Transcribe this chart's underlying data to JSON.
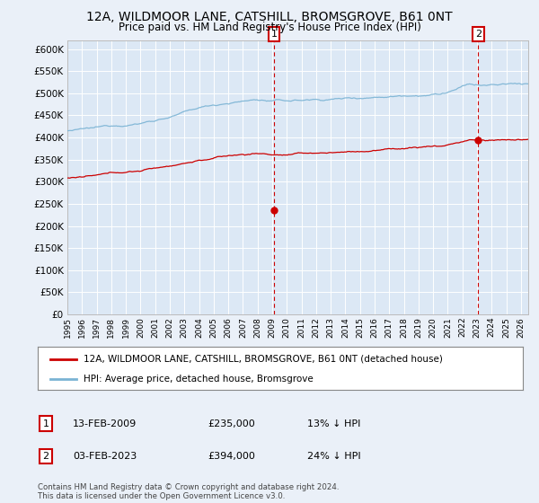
{
  "title": "12A, WILDMOOR LANE, CATSHILL, BROMSGROVE, B61 0NT",
  "subtitle": "Price paid vs. HM Land Registry's House Price Index (HPI)",
  "ylim": [
    0,
    620000
  ],
  "yticks": [
    0,
    50000,
    100000,
    150000,
    200000,
    250000,
    300000,
    350000,
    400000,
    450000,
    500000,
    550000,
    600000
  ],
  "ytick_labels": [
    "£0",
    "£50K",
    "£100K",
    "£150K",
    "£200K",
    "£250K",
    "£300K",
    "£350K",
    "£400K",
    "£450K",
    "£500K",
    "£550K",
    "£600K"
  ],
  "xlim_start": 1995.0,
  "xlim_end": 2026.5,
  "sale1_x": 2009.12,
  "sale1_y": 235000,
  "sale2_x": 2023.09,
  "sale2_y": 394000,
  "hpi_line_color": "#7ab3d4",
  "price_line_color": "#cc0000",
  "bg_color": "#eaf0f8",
  "plot_bg_color": "#dce8f5",
  "grid_color": "#ffffff",
  "legend_label_red": "12A, WILDMOOR LANE, CATSHILL, BROMSGROVE, B61 0NT (detached house)",
  "legend_label_blue": "HPI: Average price, detached house, Bromsgrove",
  "sale1_date": "13-FEB-2009",
  "sale1_price": "£235,000",
  "sale1_hpi": "13% ↓ HPI",
  "sale2_date": "03-FEB-2023",
  "sale2_price": "£394,000",
  "sale2_hpi": "24% ↓ HPI",
  "footer": "Contains HM Land Registry data © Crown copyright and database right 2024.\nThis data is licensed under the Open Government Licence v3.0."
}
